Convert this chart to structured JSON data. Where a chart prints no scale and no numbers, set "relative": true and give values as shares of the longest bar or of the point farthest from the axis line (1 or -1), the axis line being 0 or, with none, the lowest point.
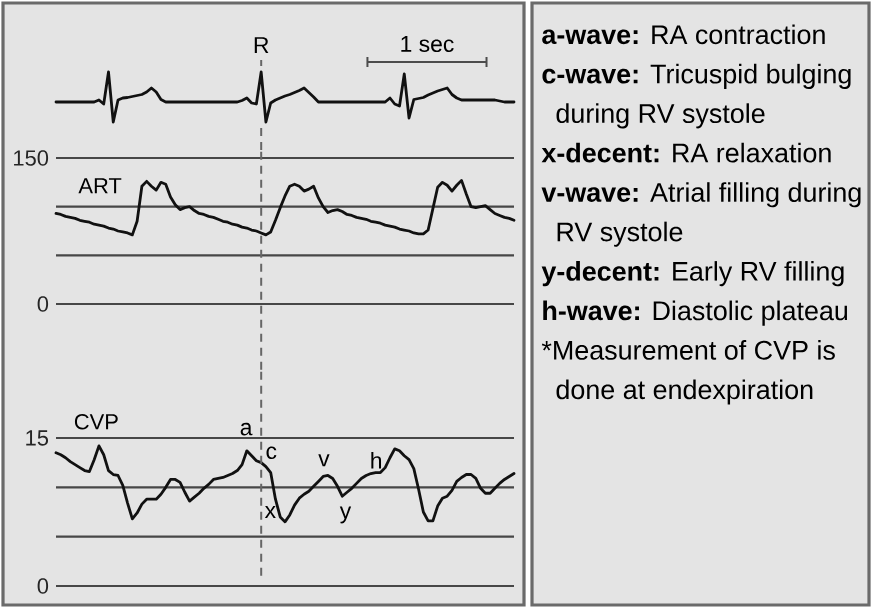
{
  "chart_data": [
    {
      "type": "line",
      "relative": true,
      "tick_labels": false,
      "color": "#111111",
      "categories": [
        null,
        null,
        null,
        null,
        null,
        null,
        null,
        null,
        null,
        null,
        null,
        null,
        null,
        null,
        null,
        null,
        null,
        null,
        null,
        null,
        null,
        null,
        null,
        null,
        null,
        null,
        null,
        null,
        null,
        null,
        null,
        null,
        null,
        null,
        null,
        null,
        null,
        null,
        null,
        null,
        null,
        null,
        null,
        null,
        null,
        null,
        null,
        null,
        null,
        null,
        null,
        null,
        null,
        null,
        null,
        null,
        null,
        null,
        null,
        null,
        null,
        null,
        null,
        null,
        null,
        null,
        null,
        null,
        null,
        null,
        null,
        null,
        null,
        null,
        null,
        null,
        null,
        null,
        null,
        null,
        null,
        null,
        null,
        null,
        null,
        null,
        null,
        null,
        null,
        null,
        null,
        null,
        null,
        null,
        null,
        null,
        null
      ],
      "values": [
        0.4,
        0.4,
        0.4,
        0.4,
        0.4,
        0.4,
        0.4,
        0.4,
        0.4,
        0.44,
        0.36,
        1,
        0,
        0.44,
        0.48,
        0.49,
        0.51,
        0.53,
        0.55,
        0.6,
        0.68,
        0.6,
        0.45,
        0.4,
        0.4,
        0.4,
        0.4,
        0.4,
        0.4,
        0.4,
        0.4,
        0.4,
        0.4,
        0.4,
        0.4,
        0.4,
        0.4,
        0.4,
        0.4,
        0.43,
        0.48,
        0.38,
        0.36,
        1,
        0,
        0.38,
        0.44,
        0.48,
        0.52,
        0.55,
        0.59,
        0.63,
        0.68,
        0.59,
        0.5,
        0.4,
        0.4,
        0.4,
        0.4,
        0.4,
        0.4,
        0.4,
        0.4,
        0.4,
        0.4,
        0.4,
        0.4,
        0.4,
        0.4,
        0.4,
        0.48,
        0.36,
        0.32,
        0.96,
        0.08,
        0.45,
        0.47,
        0.49,
        0.54,
        0.58,
        0.62,
        0.65,
        0.68,
        0.55,
        0.48,
        0.44,
        0.44,
        0.44,
        0.44,
        0.44,
        0.44,
        0.44,
        0.44,
        0.42,
        0.4,
        0.4,
        0.4
      ],
      "annotations": [
        "R",
        "1 sec"
      ]
    },
    {
      "type": "line",
      "ylim": [
        0,
        150
      ],
      "yticks": [
        0,
        {
          "value": 50,
          "label": null
        },
        {
          "value": 100,
          "label": null
        },
        150
      ],
      "grid": "y",
      "categories": [
        null,
        null,
        null,
        null,
        null,
        null,
        null,
        null,
        null,
        null,
        null,
        null,
        null,
        null,
        null,
        null,
        null,
        null,
        null,
        null,
        null,
        null,
        null,
        null,
        null,
        null,
        null,
        null,
        null,
        null,
        null,
        null,
        null,
        null,
        null,
        null,
        null,
        null,
        null,
        null,
        null,
        null,
        null,
        null,
        null,
        null,
        null,
        null,
        null,
        null,
        null,
        null,
        null,
        null,
        null,
        null,
        null,
        null,
        null,
        null,
        null,
        null,
        null,
        null,
        null,
        null,
        null,
        null,
        null,
        null,
        null,
        null,
        null,
        null,
        null,
        null,
        null,
        null,
        null,
        null,
        null,
        null,
        null,
        null,
        null,
        null,
        null,
        null,
        null,
        null,
        null,
        null,
        null,
        null,
        null,
        null,
        null
      ],
      "series": [
        {
          "name": "ART",
          "color": "#111111",
          "values": [
            93,
            92,
            90,
            89,
            88,
            86,
            85,
            84,
            82,
            81,
            80,
            78,
            77,
            75,
            74,
            73,
            71,
            85,
            121,
            126,
            121,
            117,
            125,
            123,
            110,
            102,
            97,
            99,
            100,
            96,
            93,
            92,
            90,
            89,
            87,
            85,
            84,
            82,
            81,
            79,
            78,
            76,
            75,
            73,
            71,
            74,
            86,
            99,
            111,
            121,
            123,
            121,
            116,
            118,
            121,
            109,
            100,
            94,
            96,
            97,
            95,
            92,
            91,
            89,
            88,
            87,
            85,
            84,
            83,
            81,
            80,
            79,
            77,
            76,
            75,
            73,
            72,
            72,
            76,
            98,
            120,
            125,
            122,
            116,
            122,
            127,
            113,
            100,
            99,
            100,
            101,
            97,
            93,
            91,
            89,
            88,
            86
          ]
        }
      ],
      "tick_labels": "y"
    },
    {
      "type": "line",
      "ylim": [
        0,
        15
      ],
      "yticks": [
        0,
        {
          "value": 5,
          "label": null
        },
        {
          "value": 10,
          "label": null
        },
        15
      ],
      "grid": "y",
      "tick_labels": "y",
      "categories": [
        null,
        null,
        null,
        null,
        null,
        null,
        null,
        null,
        null,
        null,
        null,
        null,
        null,
        null,
        null,
        null,
        null,
        null,
        null,
        null,
        null,
        null,
        null,
        null,
        null,
        null,
        null,
        null,
        null,
        null,
        null,
        null,
        null,
        null,
        null,
        null,
        null,
        null,
        null,
        null,
        null,
        null,
        null,
        null,
        null,
        null,
        null,
        null,
        null,
        null,
        null,
        null,
        null,
        null,
        null,
        null,
        null,
        null,
        null,
        null,
        null,
        null,
        null,
        null,
        null,
        null,
        null,
        null,
        null,
        null,
        null,
        null,
        null,
        null,
        null,
        null,
        null,
        null,
        null,
        null,
        null,
        null,
        null,
        null,
        null,
        null,
        null,
        null,
        null,
        null,
        null,
        null,
        null,
        null,
        null,
        null,
        null
      ],
      "series": [
        {
          "name": "CVP",
          "color": "#111111",
          "values": [
            13.5,
            13.3,
            13.0,
            12.6,
            12.3,
            12.0,
            11.7,
            11.6,
            12.8,
            14.2,
            13.3,
            11.7,
            11.3,
            11.2,
            10.2,
            8.4,
            6.8,
            7.4,
            8.3,
            8.8,
            8.8,
            8.8,
            9.3,
            10.0,
            10.8,
            10.8,
            10.5,
            9.5,
            8.6,
            9.0,
            9.4,
            9.9,
            10.3,
            10.8,
            10.9,
            11.0,
            11.2,
            11.4,
            11.7,
            12.3,
            13.7,
            13.2,
            12.7,
            12.5,
            12.1,
            11.5,
            8.8,
            7.0,
            6.5,
            7.2,
            8.2,
            8.9,
            9.3,
            9.6,
            10.1,
            10.6,
            11.1,
            11.2,
            10.9,
            10.1,
            9.1,
            9.5,
            9.9,
            10.4,
            10.9,
            11.2,
            11.4,
            11.5,
            11.5,
            12.0,
            13.0,
            13.9,
            13.7,
            13.2,
            12.8,
            11.9,
            9.8,
            7.5,
            6.6,
            6.6,
            8.1,
            8.9,
            9.1,
            9.7,
            10.6,
            11.0,
            11.3,
            11.3,
            10.9,
            9.9,
            9.4,
            9.4,
            9.9,
            10.4,
            10.8,
            11.1,
            11.4
          ]
        }
      ],
      "annotations": [
        "a",
        "c",
        "x",
        "v",
        "y",
        "h"
      ]
    },
    {
      "type": "other",
      "annotations": [
        "**a-wave:** RA contraction",
        "**c-wave:** Tricuspid bulging during RV systole",
        "**x-decent:** RA relaxation",
        "**v-wave:** Atrial filling during RV systole",
        "**y-decent:** Early RV filling",
        "**h-wave:** Diastolic plateau",
        "*Measurement of CVP is done at endexpiration"
      ]
    }
  ]
}
